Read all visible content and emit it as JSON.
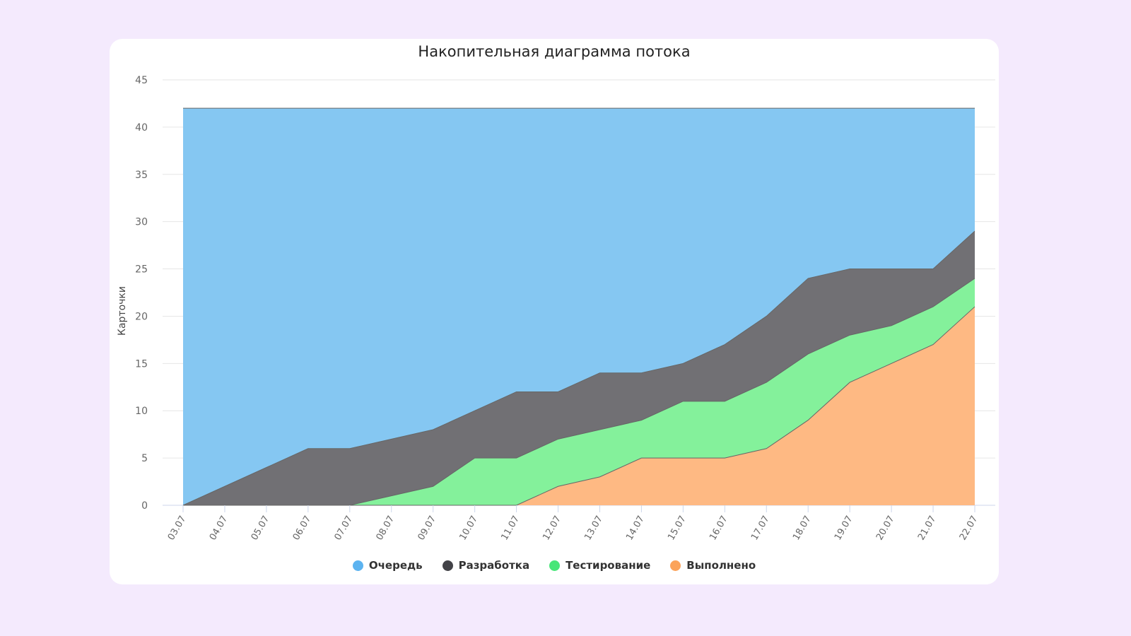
{
  "chart_data": {
    "type": "area",
    "stacked": true,
    "title": "Накопительная диаграмма потока",
    "xlabel": "",
    "ylabel": "Карточки",
    "ylim": [
      0,
      45
    ],
    "yticks": [
      0,
      5,
      10,
      15,
      20,
      25,
      30,
      35,
      40,
      45
    ],
    "grid": true,
    "legend_position": "bottom",
    "categories": [
      "03.07",
      "04.07",
      "05.07",
      "06.07",
      "07.07",
      "08.07",
      "09.07",
      "10.07",
      "11.07",
      "12.07",
      "13.07",
      "14.07",
      "15.07",
      "16.07",
      "17.07",
      "18.07",
      "19.07",
      "20.07",
      "21.07",
      "22.07"
    ],
    "total": 42,
    "series": [
      {
        "name": "Очередь",
        "color": "#85c7f2",
        "legend_color": "#5cb3f0",
        "cumulative_top": [
          42,
          42,
          42,
          42,
          42,
          42,
          42,
          42,
          42,
          42,
          42,
          42,
          42,
          42,
          42,
          42,
          42,
          42,
          42,
          42
        ],
        "values": [
          42,
          40,
          38,
          36,
          36,
          35,
          34,
          32,
          30,
          30,
          28,
          28,
          27,
          25,
          22,
          18,
          17,
          17,
          17,
          13
        ]
      },
      {
        "name": "Разработка",
        "color": "#717074",
        "legend_color": "#434348",
        "cumulative_top": [
          0,
          2,
          4,
          6,
          6,
          7,
          8,
          10,
          12,
          12,
          14,
          14,
          15,
          17,
          20,
          24,
          25,
          25,
          25,
          29
        ],
        "values": [
          0,
          2,
          4,
          6,
          6,
          6,
          6,
          5,
          7,
          5,
          6,
          5,
          4,
          6,
          7,
          8,
          7,
          6,
          4,
          5
        ]
      },
      {
        "name": "Тестирование",
        "color": "#84f19b",
        "legend_color": "#48e678",
        "cumulative_top": [
          0,
          0,
          0,
          0,
          0,
          1,
          2,
          5,
          5,
          7,
          8,
          9,
          11,
          11,
          13,
          16,
          18,
          19,
          21,
          24
        ],
        "values": [
          0,
          0,
          0,
          0,
          0,
          1,
          2,
          5,
          5,
          5,
          5,
          4,
          6,
          6,
          7,
          7,
          5,
          4,
          4,
          3
        ]
      },
      {
        "name": "Выполнено",
        "color": "#feb983",
        "legend_color": "#fba35a",
        "cumulative_top": [
          0,
          0,
          0,
          0,
          0,
          0,
          0,
          0,
          0,
          2,
          3,
          5,
          5,
          5,
          6,
          9,
          13,
          15,
          17,
          21
        ],
        "values": [
          0,
          0,
          0,
          0,
          0,
          0,
          0,
          0,
          0,
          2,
          3,
          5,
          5,
          5,
          6,
          9,
          13,
          15,
          17,
          21
        ]
      }
    ]
  }
}
